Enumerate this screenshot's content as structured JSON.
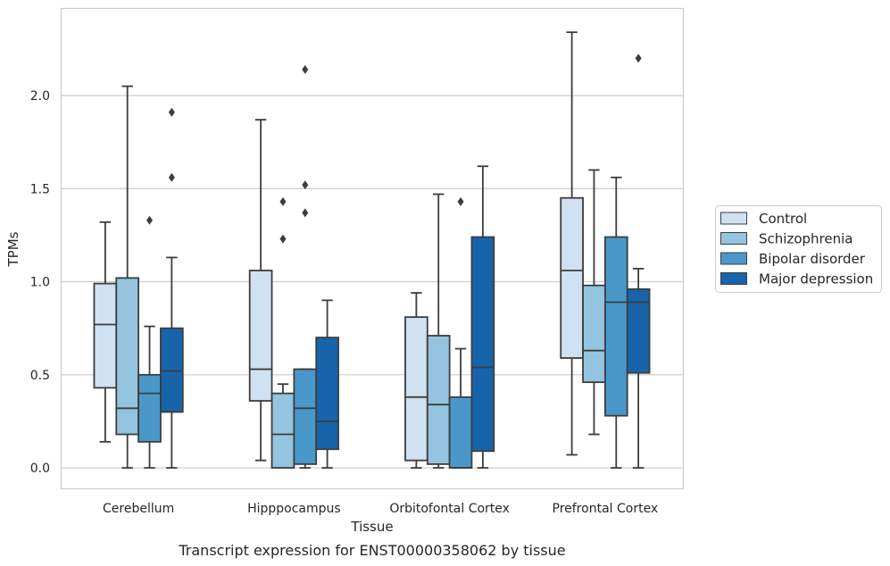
{
  "caption": "Transcript expression for ENST00000358062 by tissue",
  "chart_data": {
    "type": "boxplot",
    "xlabel": "Tissue",
    "ylabel": "TPMs",
    "ylim": [
      -0.11,
      2.47
    ],
    "yticks": [
      0.0,
      0.5,
      1.0,
      1.5,
      2.0
    ],
    "ytick_labels": [
      "0.0",
      "0.5",
      "1.0",
      "1.5",
      "2.0"
    ],
    "grid": true,
    "legend_position": "right",
    "categories": [
      "Cerebellum",
      "Hipppocampus",
      "Orbitofontal Cortex",
      "Prefrontal Cortex"
    ],
    "series": [
      {
        "name": "Control",
        "color": "#d0e1f2",
        "boxes": [
          {
            "whislo": 0.14,
            "q1": 0.43,
            "med": 0.77,
            "q3": 0.99,
            "whishi": 1.32,
            "fliers": []
          },
          {
            "whislo": 0.04,
            "q1": 0.36,
            "med": 0.53,
            "q3": 1.06,
            "whishi": 1.87,
            "fliers": []
          },
          {
            "whislo": 0.0,
            "q1": 0.04,
            "med": 0.38,
            "q3": 0.81,
            "whishi": 0.94,
            "fliers": []
          },
          {
            "whislo": 0.07,
            "q1": 0.59,
            "med": 1.06,
            "q3": 1.45,
            "whishi": 2.34,
            "fliers": []
          }
        ]
      },
      {
        "name": "Schizophrenia",
        "color": "#94c4df",
        "boxes": [
          {
            "whislo": 0.0,
            "q1": 0.18,
            "med": 0.32,
            "q3": 1.02,
            "whishi": 2.05,
            "fliers": []
          },
          {
            "whislo": 0.0,
            "q1": 0.0,
            "med": 0.18,
            "q3": 0.4,
            "whishi": 0.45,
            "fliers": [
              1.23,
              1.43
            ]
          },
          {
            "whislo": 0.0,
            "q1": 0.02,
            "med": 0.34,
            "q3": 0.71,
            "whishi": 1.47,
            "fliers": []
          },
          {
            "whislo": 0.18,
            "q1": 0.46,
            "med": 0.63,
            "q3": 0.98,
            "whishi": 1.6,
            "fliers": []
          }
        ]
      },
      {
        "name": "Bipolar disorder",
        "color": "#4a98c9",
        "boxes": [
          {
            "whislo": 0.0,
            "q1": 0.14,
            "med": 0.4,
            "q3": 0.5,
            "whishi": 0.76,
            "fliers": [
              1.33
            ]
          },
          {
            "whislo": 0.0,
            "q1": 0.02,
            "med": 0.32,
            "q3": 0.53,
            "whishi": 0.53,
            "fliers": [
              1.37,
              1.52,
              2.14
            ]
          },
          {
            "whislo": 0.0,
            "q1": 0.0,
            "med": 0.0,
            "q3": 0.38,
            "whishi": 0.64,
            "fliers": [
              1.43
            ]
          },
          {
            "whislo": 0.0,
            "q1": 0.28,
            "med": 0.89,
            "q3": 1.24,
            "whishi": 1.56,
            "fliers": []
          }
        ]
      },
      {
        "name": "Major depression",
        "color": "#1764ab",
        "boxes": [
          {
            "whislo": 0.0,
            "q1": 0.3,
            "med": 0.52,
            "q3": 0.75,
            "whishi": 1.13,
            "fliers": [
              1.56,
              1.91
            ]
          },
          {
            "whislo": 0.0,
            "q1": 0.1,
            "med": 0.25,
            "q3": 0.7,
            "whishi": 0.9,
            "fliers": []
          },
          {
            "whislo": 0.0,
            "q1": 0.09,
            "med": 0.54,
            "q3": 1.24,
            "whishi": 1.62,
            "fliers": []
          },
          {
            "whislo": 0.0,
            "q1": 0.51,
            "med": 0.89,
            "q3": 0.96,
            "whishi": 1.07,
            "fliers": [
              2.2
            ]
          }
        ]
      }
    ]
  }
}
